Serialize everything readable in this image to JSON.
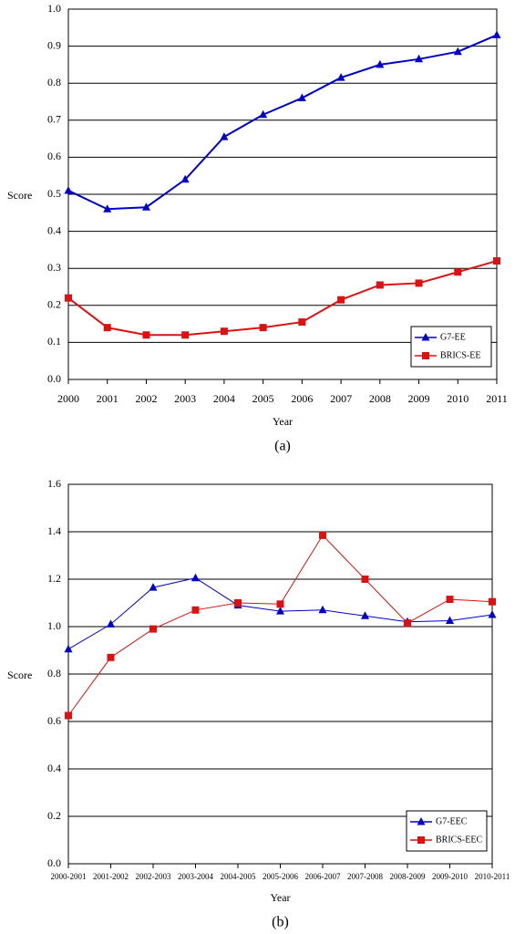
{
  "chart_data": [
    {
      "type": "line",
      "caption": "(a)",
      "x_label": "Year",
      "y_label": "Score",
      "x": [
        2000,
        2001,
        2002,
        2003,
        2004,
        2005,
        2006,
        2007,
        2008,
        2009,
        2010,
        2011
      ],
      "xlim": [
        2000,
        2011
      ],
      "xticks": [
        2000,
        2001,
        2002,
        2003,
        2004,
        2005,
        2006,
        2007,
        2008,
        2009,
        2010,
        2011
      ],
      "ylim": [
        0,
        1
      ],
      "yticks": [
        {
          "value": 0,
          "label": "0.0"
        },
        0.1,
        0.2,
        0.3,
        0.4,
        0.5,
        0.6,
        0.7,
        0.8,
        0.9,
        {
          "value": 1,
          "label": "1.0"
        }
      ],
      "grid": true,
      "legend": "lower right",
      "series": [
        {
          "name": "G7-EE",
          "color": "#0000cc",
          "marker": "triangle",
          "values": [
            0.51,
            0.46,
            0.465,
            0.54,
            0.655,
            0.715,
            0.76,
            0.815,
            0.85,
            0.865,
            0.885,
            0.93
          ]
        },
        {
          "name": "BRICS-EE",
          "color": "#dd1111",
          "marker": "square",
          "values": [
            0.22,
            0.14,
            0.12,
            0.12,
            0.13,
            0.14,
            0.155,
            0.215,
            0.255,
            0.26,
            0.29,
            0.32
          ]
        }
      ]
    },
    {
      "type": "line",
      "caption": "(b)",
      "x_label": "Year",
      "y_label": "Score",
      "categories": [
        "2000-2001",
        "2001-2002",
        "2002-2003",
        "2003-2004",
        "2004-2005",
        "2005-2006",
        "2006-2007",
        "2007-2008",
        "2008-2009",
        "2009-2010",
        "2010-2011"
      ],
      "ylim": [
        0,
        1.6
      ],
      "yticks": [
        {
          "value": 0,
          "label": "0.0"
        },
        0.2,
        0.4,
        0.6,
        0.8,
        {
          "value": 1,
          "label": "1.0"
        },
        1.2,
        1.4,
        1.6
      ],
      "grid": true,
      "legend": "lower right",
      "series": [
        {
          "name": "G7-EEC",
          "color": "#0000cc",
          "marker": "triangle",
          "values": [
            0.905,
            1.01,
            1.165,
            1.205,
            1.09,
            1.065,
            1.07,
            1.045,
            1.02,
            1.025,
            1.05
          ]
        },
        {
          "name": "BRICS-EEC",
          "color": "#dd1111",
          "marker": "square",
          "values": [
            0.625,
            0.87,
            0.99,
            1.07,
            1.1,
            1.095,
            1.385,
            1.2,
            1.015,
            1.115,
            1.105
          ]
        }
      ]
    }
  ]
}
